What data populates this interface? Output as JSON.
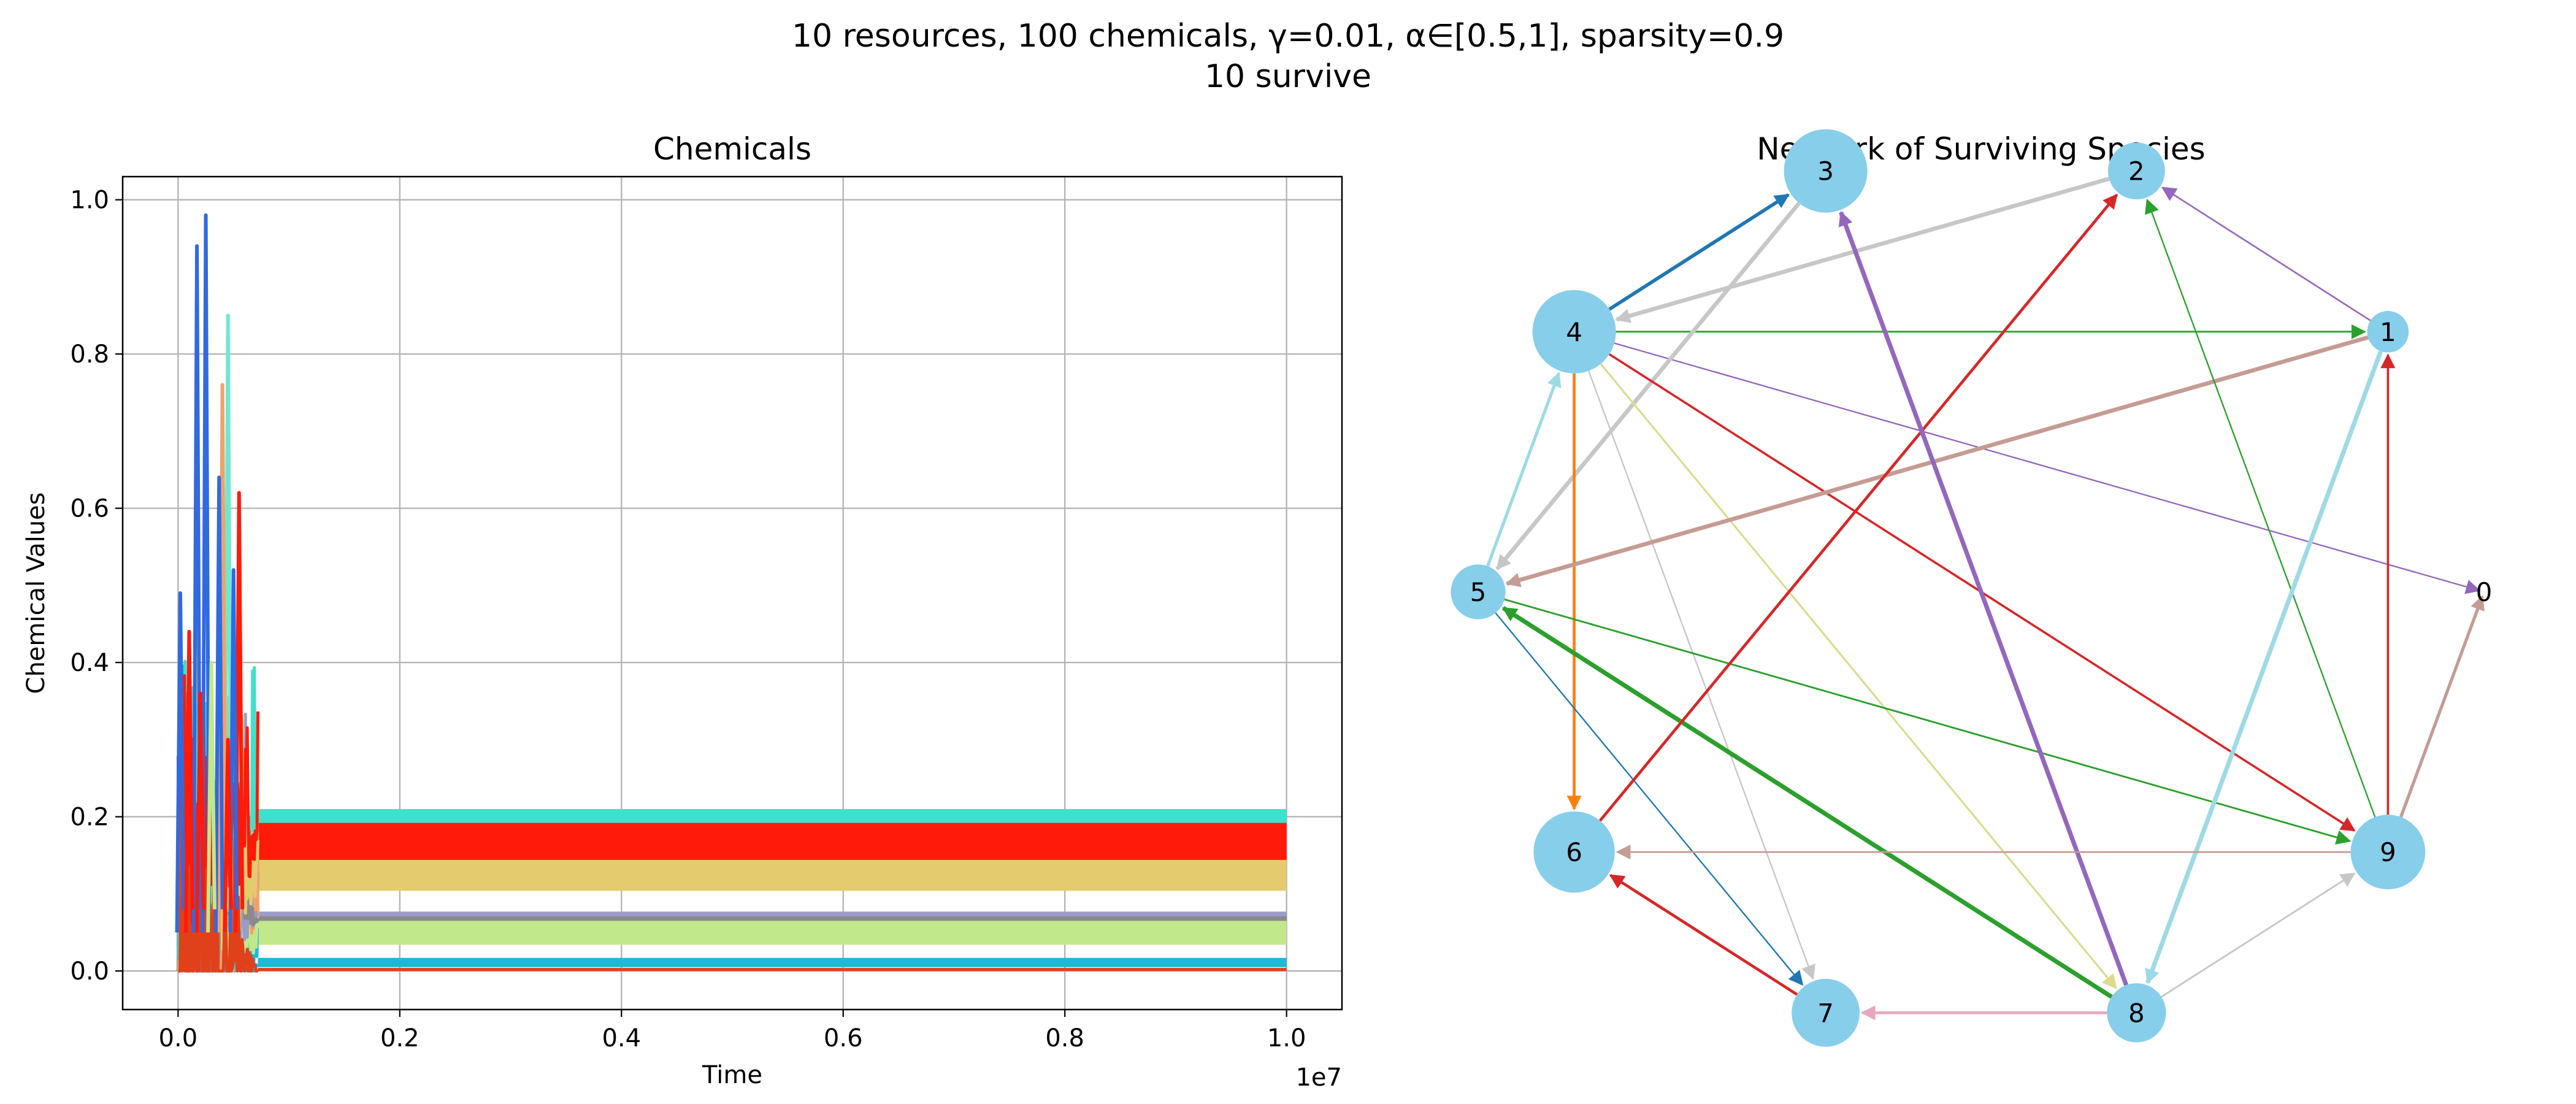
{
  "figure": {
    "suptitle_line1": "10 resources, 100 chemicals, γ=0.01, α∈[0.5,1], sparsity=0.9",
    "suptitle_line2": "10 survive"
  },
  "chart_data": [
    {
      "type": "line",
      "title": "Chemicals",
      "xlabel": "Time",
      "ylabel": "Chemical Values",
      "x_offset_label": "1e7",
      "xlim": [
        -0.05,
        1.05
      ],
      "ylim": [
        -0.05,
        1.03
      ],
      "xticks": [
        0.0,
        0.2,
        0.4,
        0.6,
        0.8,
        1.0
      ],
      "xtick_labels": [
        "0.0",
        "0.2",
        "0.4",
        "0.6",
        "0.8",
        "1.0"
      ],
      "yticks": [
        0.0,
        0.2,
        0.4,
        0.6,
        0.8,
        1.0
      ],
      "ytick_labels": [
        "0.0",
        "0.2",
        "0.4",
        "0.6",
        "0.8",
        "1.0"
      ],
      "grid": true,
      "transient_end": 0.06,
      "steady_bands": [
        {
          "y": 0.008,
          "half_width": 0.003,
          "color": "#17becf"
        },
        {
          "y": 0.013,
          "half_width": 0.004,
          "color": "#1fb8d8"
        },
        {
          "y": 0.05,
          "half_width": 0.016,
          "color": "#c2e88c"
        },
        {
          "y": 0.07,
          "half_width": 0.004,
          "color": "#f4a06a"
        },
        {
          "y": 0.074,
          "half_width": 0.003,
          "color": "#9a9cc9"
        },
        {
          "y": 0.068,
          "half_width": 0.003,
          "color": "#8a8a8a"
        },
        {
          "y": 0.125,
          "half_width": 0.021,
          "color": "#e4cb6e"
        },
        {
          "y": 0.2,
          "half_width": 0.01,
          "color": "#3fe0cc"
        },
        {
          "y": 0.168,
          "half_width": 0.024,
          "color": "#ff1a0a"
        },
        {
          "y": 0.002,
          "half_width": 0.002,
          "color": "#e0401a"
        }
      ],
      "transient_peaks": [
        {
          "x": 0.025,
          "y": 0.98,
          "color": "#2f6ae0"
        },
        {
          "x": 0.017,
          "y": 0.94,
          "color": "#2f6ae0"
        },
        {
          "x": 0.045,
          "y": 0.85,
          "color": "#6fe8d0"
        },
        {
          "x": 0.04,
          "y": 0.76,
          "color": "#f4a06a"
        },
        {
          "x": 0.037,
          "y": 0.64,
          "color": "#2f6ae0"
        },
        {
          "x": 0.055,
          "y": 0.62,
          "color": "#ff1a0a"
        },
        {
          "x": 0.05,
          "y": 0.52,
          "color": "#2f6ae0"
        },
        {
          "x": 0.002,
          "y": 0.49,
          "color": "#2f6ae0"
        },
        {
          "x": 0.01,
          "y": 0.44,
          "color": "#ff1a0a"
        },
        {
          "x": 0.03,
          "y": 0.4,
          "color": "#c2e88c"
        },
        {
          "x": 0.02,
          "y": 0.36,
          "color": "#ff1a0a"
        },
        {
          "x": 0.045,
          "y": 0.3,
          "color": "#ff1a0a"
        }
      ]
    },
    {
      "type": "network",
      "title": "Network of Surviving Species",
      "nodes": [
        {
          "id": "0",
          "label": "0",
          "size": 0
        },
        {
          "id": "1",
          "label": "1",
          "size": 0.05
        },
        {
          "id": "2",
          "label": "2",
          "size": 0.4
        },
        {
          "id": "3",
          "label": "3",
          "size": 1.0
        },
        {
          "id": "4",
          "label": "4",
          "size": 1.0
        },
        {
          "id": "5",
          "label": "5",
          "size": 0.35
        },
        {
          "id": "6",
          "label": "6",
          "size": 0.95
        },
        {
          "id": "7",
          "label": "7",
          "size": 0.65
        },
        {
          "id": "8",
          "label": "8",
          "size": 0.45
        },
        {
          "id": "9",
          "label": "9",
          "size": 0.8
        }
      ],
      "edges": [
        {
          "from": "4",
          "to": "3",
          "color": "#1f77b4",
          "weight": 2.2
        },
        {
          "from": "2",
          "to": "4",
          "color": "#c7c7c7",
          "weight": 2.6
        },
        {
          "from": "1",
          "to": "2",
          "color": "#9467bd",
          "weight": 1.0
        },
        {
          "from": "4",
          "to": "1",
          "color": "#2ca02c",
          "weight": 1.1
        },
        {
          "from": "4",
          "to": "0",
          "color": "#9467bd",
          "weight": 0.9
        },
        {
          "from": "3",
          "to": "5",
          "color": "#c7c7c7",
          "weight": 2.6
        },
        {
          "from": "4",
          "to": "6",
          "color": "#ff7f0e",
          "weight": 1.8
        },
        {
          "from": "4",
          "to": "7",
          "color": "#c7c7c7",
          "weight": 0.9
        },
        {
          "from": "4",
          "to": "8",
          "color": "#dbdb8d",
          "weight": 1.2
        },
        {
          "from": "4",
          "to": "9",
          "color": "#d62728",
          "weight": 1.4
        },
        {
          "from": "1",
          "to": "5",
          "color": "#c49c94",
          "weight": 2.6
        },
        {
          "from": "5",
          "to": "4",
          "color": "#9edae5",
          "weight": 2.0
        },
        {
          "from": "5",
          "to": "7",
          "color": "#1f77b4",
          "weight": 0.9
        },
        {
          "from": "5",
          "to": "9",
          "color": "#2ca02c",
          "weight": 1.1
        },
        {
          "from": "8",
          "to": "5",
          "color": "#2ca02c",
          "weight": 2.8
        },
        {
          "from": "6",
          "to": "2",
          "color": "#d62728",
          "weight": 1.8
        },
        {
          "from": "8",
          "to": "3",
          "color": "#9467bd",
          "weight": 2.8
        },
        {
          "from": "9",
          "to": "2",
          "color": "#2ca02c",
          "weight": 0.9
        },
        {
          "from": "1",
          "to": "8",
          "color": "#9edae5",
          "weight": 2.8
        },
        {
          "from": "9",
          "to": "1",
          "color": "#d62728",
          "weight": 1.4
        },
        {
          "from": "9",
          "to": "0",
          "color": "#c49c94",
          "weight": 2.0
        },
        {
          "from": "8",
          "to": "9",
          "color": "#c7c7c7",
          "weight": 1.1
        },
        {
          "from": "8",
          "to": "7",
          "color": "#e7a8bd",
          "weight": 1.8
        },
        {
          "from": "9",
          "to": "6",
          "color": "#c49c94",
          "weight": 1.1
        },
        {
          "from": "7",
          "to": "6",
          "color": "#d62728",
          "weight": 1.8
        }
      ],
      "node_color": "#87ceeb"
    }
  ]
}
